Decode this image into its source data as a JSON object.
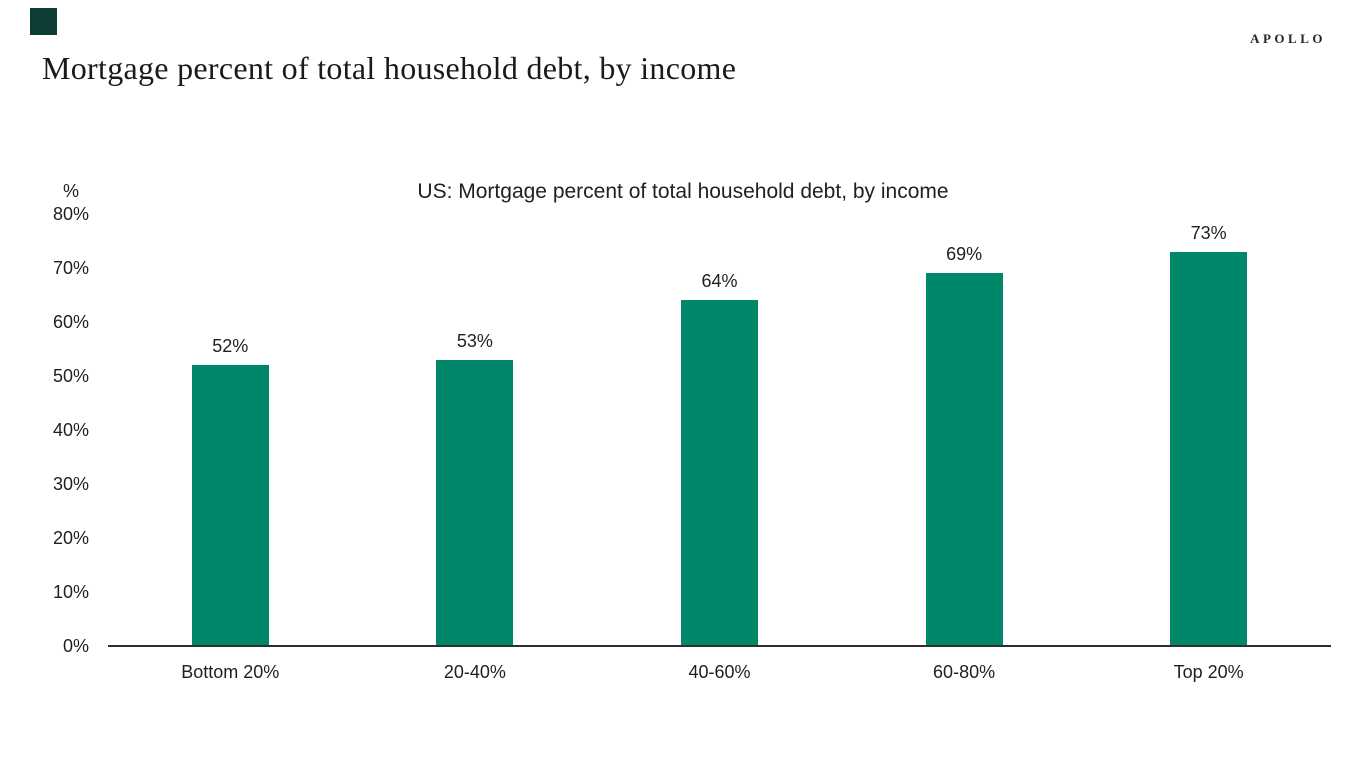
{
  "slide": {
    "title": "Mortgage percent of total household debt, by income",
    "brand": "APOLLO",
    "accent_color": "#0d3d34"
  },
  "chart_data": {
    "type": "bar",
    "title": "US: Mortgage percent of total household debt, by income",
    "unit_label": "%",
    "categories": [
      "Bottom 20%",
      "20-40%",
      "40-60%",
      "60-80%",
      "Top 20%"
    ],
    "values": [
      52,
      53,
      64,
      69,
      73
    ],
    "value_labels": [
      "52%",
      "53%",
      "64%",
      "69%",
      "73%"
    ],
    "y_ticks": [
      "0%",
      "10%",
      "20%",
      "30%",
      "40%",
      "50%",
      "60%",
      "70%",
      "80%"
    ],
    "ylim": [
      0,
      80
    ],
    "ytick_interval": 10,
    "grid": false,
    "legend": false,
    "bar_color": "#008769",
    "axis_color": "#2e2e2e"
  }
}
